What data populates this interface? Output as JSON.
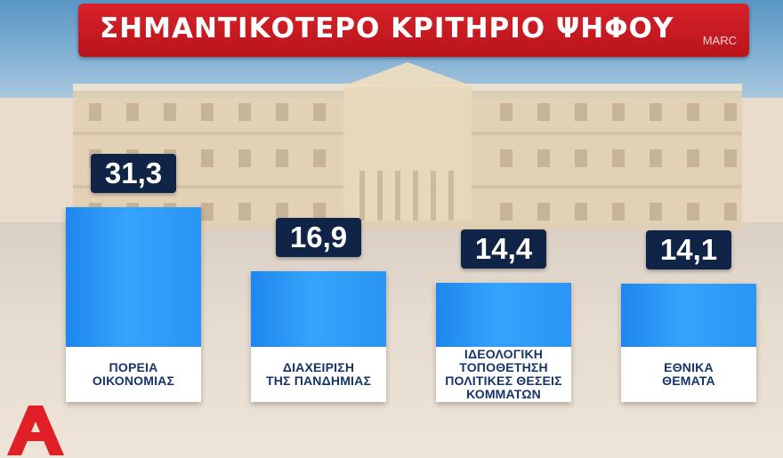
{
  "header": {
    "title": "ΣΗΜΑΝΤΙΚΟΤΕΡΟ ΚΡΙΤΗΡΙΟ ΨΗΦΟΥ",
    "source": "MARC"
  },
  "colors": {
    "banner": "#c91a21",
    "bar": "#2a95f5",
    "value_box": "#0f2447",
    "label_text": "#16346a",
    "logo": "#e01f26"
  },
  "logo": {
    "icon": "channel-logo-icon",
    "letter": "A"
  },
  "chart_data": {
    "type": "bar",
    "title": "ΣΗΜΑΝΤΙΚΟΤΕΡΟ ΚΡΙΤΗΡΙΟ ΨΗΦΟΥ",
    "categories": [
      "ΠΟΡΕΙΑ\nΟΙΚΟΝΟΜΙΑΣ",
      "ΔΙΑΧΕΙΡΙΣΗ\nΤΗΣ ΠΑΝΔΗΜΙΑΣ",
      "ΙΔΕΟΛΟΓΙΚΗ\nΤΟΠΟΘΕΤΗΣΗ\nΠΟΛΙΤΙΚΕΣ ΘΕΣΕΙΣ\nΚΟΜΜΑΤΩΝ",
      "ΕΘΝΙΚΑ\nΘΕΜΑΤΑ"
    ],
    "values": [
      31.3,
      16.9,
      14.4,
      14.1
    ],
    "value_labels": [
      "31,3",
      "16,9",
      "14,4",
      "14,1"
    ],
    "xlabel": "",
    "ylabel": "",
    "grid": false,
    "legend": "none"
  }
}
